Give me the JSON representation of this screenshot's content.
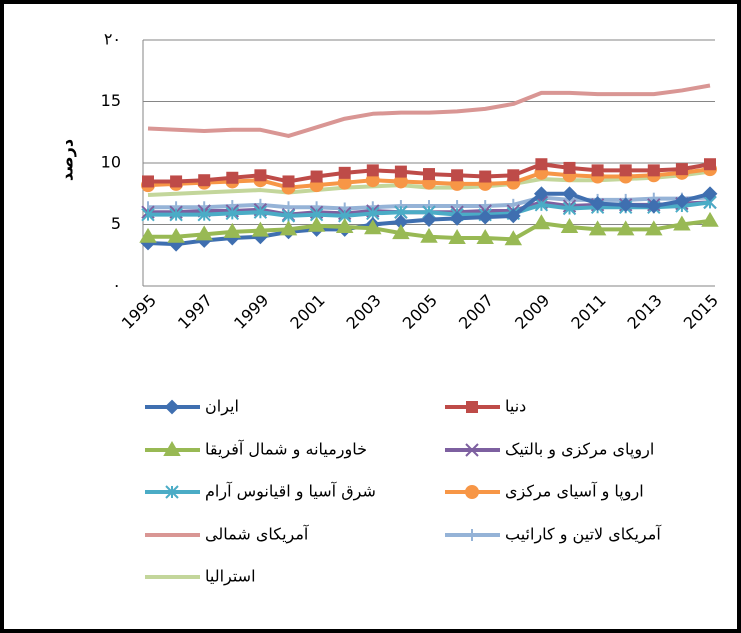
{
  "chart_data": {
    "type": "line",
    "y_label": "درصد",
    "categories": [
      "1995",
      null,
      "1997",
      null,
      "1999",
      null,
      "2001",
      null,
      "2003",
      null,
      "2005",
      null,
      "2007",
      null,
      "2009",
      null,
      "2011",
      null,
      "2013",
      null,
      "2015"
    ],
    "ylim": [
      0,
      20
    ],
    "yticks": [
      {
        "value": 0,
        "label": "۰"
      },
      5,
      10,
      15,
      {
        "value": 20,
        "label": "۲۰"
      }
    ],
    "grid": true,
    "series": [
      {
        "name": "ایران",
        "color": "#3f6fb0",
        "marker": "diamond",
        "values": [
          3.5,
          3.4,
          3.7,
          3.9,
          4.0,
          4.4,
          4.6,
          4.6,
          5.0,
          5.2,
          5.4,
          5.5,
          5.6,
          5.7,
          7.5,
          7.5,
          6.7,
          6.6,
          6.5,
          6.9,
          7.5
        ]
      },
      {
        "name": "دنیا",
        "color": "#be4b48",
        "marker": "square",
        "values": [
          8.5,
          8.5,
          8.6,
          8.8,
          9.0,
          8.5,
          8.9,
          9.2,
          9.4,
          9.3,
          9.1,
          9.0,
          8.9,
          9.0,
          9.9,
          9.6,
          9.4,
          9.4,
          9.4,
          9.5,
          9.9
        ]
      },
      {
        "name": "خاورمیانه و شمال آفریقا",
        "color": "#98b954",
        "marker": "triangle",
        "values": [
          4.0,
          4.0,
          4.2,
          4.4,
          4.5,
          4.6,
          4.9,
          4.8,
          4.7,
          4.3,
          4.0,
          3.9,
          3.9,
          3.8,
          5.1,
          4.8,
          4.6,
          4.6,
          4.6,
          5.0,
          5.3
        ]
      },
      {
        "name": "اروپای مرکزی و بالتیک",
        "color": "#7d60a0",
        "marker": "x",
        "values": [
          6.0,
          6.0,
          6.1,
          6.1,
          6.2,
          5.8,
          6.0,
          5.9,
          6.1,
          6.0,
          6.0,
          6.0,
          6.1,
          6.1,
          6.8,
          6.5,
          6.6,
          6.6,
          6.6,
          6.7,
          6.8
        ]
      },
      {
        "name": "شرق آسیا و اقیانوس آرام",
        "color": "#4bacc6",
        "marker": "asterisk",
        "values": [
          5.8,
          5.8,
          5.8,
          5.9,
          6.0,
          5.7,
          5.8,
          5.7,
          5.9,
          6.0,
          6.0,
          5.8,
          5.8,
          5.9,
          6.6,
          6.3,
          6.4,
          6.4,
          6.4,
          6.5,
          6.8
        ]
      },
      {
        "name": "اروپا و آسیای مرکزی",
        "color": "#f79646",
        "marker": "circle",
        "values": [
          8.2,
          8.3,
          8.4,
          8.5,
          8.6,
          8.0,
          8.2,
          8.4,
          8.6,
          8.5,
          8.4,
          8.3,
          8.3,
          8.4,
          9.2,
          9.0,
          8.9,
          8.9,
          9.0,
          9.2,
          9.5
        ]
      },
      {
        "name": "آمریکای شمالی",
        "color": "#d99694",
        "marker": "none",
        "values": [
          12.8,
          12.7,
          12.6,
          12.7,
          12.7,
          12.2,
          12.9,
          13.6,
          14.0,
          14.1,
          14.1,
          14.2,
          14.4,
          14.8,
          15.7,
          15.7,
          15.6,
          15.6,
          15.6,
          15.9,
          16.3
        ]
      },
      {
        "name": "آمریکای لاتین و کارائیب",
        "color": "#95b3d7",
        "marker": "plus",
        "values": [
          6.4,
          6.4,
          6.4,
          6.5,
          6.6,
          6.4,
          6.4,
          6.3,
          6.4,
          6.5,
          6.5,
          6.5,
          6.5,
          6.6,
          7.2,
          7.0,
          7.0,
          7.0,
          7.1,
          7.1,
          7.2
        ]
      },
      {
        "name": "استرالیا",
        "color": "#c3d69b",
        "marker": "none",
        "values": [
          7.4,
          7.5,
          7.6,
          7.7,
          7.8,
          7.6,
          7.8,
          8.0,
          8.1,
          8.2,
          8.0,
          8.0,
          8.1,
          8.3,
          8.7,
          8.6,
          8.6,
          8.7,
          8.8,
          9.0,
          9.3
        ]
      }
    ]
  }
}
